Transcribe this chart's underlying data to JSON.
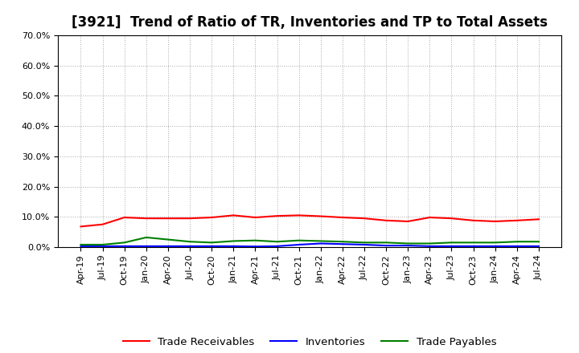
{
  "title": "[3921]  Trend of Ratio of TR, Inventories and TP to Total Assets",
  "x_labels": [
    "Apr-19",
    "Jul-19",
    "Oct-19",
    "Jan-20",
    "Apr-20",
    "Jul-20",
    "Oct-20",
    "Jan-21",
    "Apr-21",
    "Jul-21",
    "Oct-21",
    "Jan-22",
    "Apr-22",
    "Jul-22",
    "Oct-22",
    "Jan-23",
    "Apr-23",
    "Jul-23",
    "Oct-23",
    "Jan-24",
    "Apr-24",
    "Jul-24"
  ],
  "trade_receivables": [
    6.8,
    7.5,
    9.8,
    9.5,
    9.5,
    9.5,
    9.8,
    10.5,
    9.8,
    10.3,
    10.5,
    10.2,
    9.8,
    9.5,
    8.8,
    8.5,
    9.8,
    9.5,
    8.8,
    8.5,
    8.8,
    9.2
  ],
  "inventories": [
    0.3,
    0.3,
    0.3,
    0.3,
    0.3,
    0.3,
    0.3,
    0.3,
    0.2,
    0.3,
    0.8,
    1.2,
    1.0,
    0.8,
    0.5,
    0.5,
    0.3,
    0.3,
    0.3,
    0.3,
    0.3,
    0.3
  ],
  "trade_payables": [
    0.8,
    0.8,
    1.5,
    3.2,
    2.5,
    1.8,
    1.5,
    2.0,
    2.2,
    1.8,
    2.2,
    2.0,
    1.8,
    1.5,
    1.5,
    1.2,
    1.2,
    1.5,
    1.5,
    1.5,
    1.8,
    1.8
  ],
  "tr_color": "#ff0000",
  "inv_color": "#0000ff",
  "tp_color": "#008000",
  "ylim": [
    0,
    70
  ],
  "yticks": [
    0,
    10,
    20,
    30,
    40,
    50,
    60,
    70
  ],
  "ytick_labels": [
    "0.0%",
    "10.0%",
    "20.0%",
    "30.0%",
    "40.0%",
    "50.0%",
    "60.0%",
    "70.0%"
  ],
  "legend_labels": [
    "Trade Receivables",
    "Inventories",
    "Trade Payables"
  ],
  "background_color": "#ffffff",
  "grid_color": "#aaaaaa",
  "title_fontsize": 12,
  "tick_fontsize": 8,
  "legend_fontsize": 9.5
}
